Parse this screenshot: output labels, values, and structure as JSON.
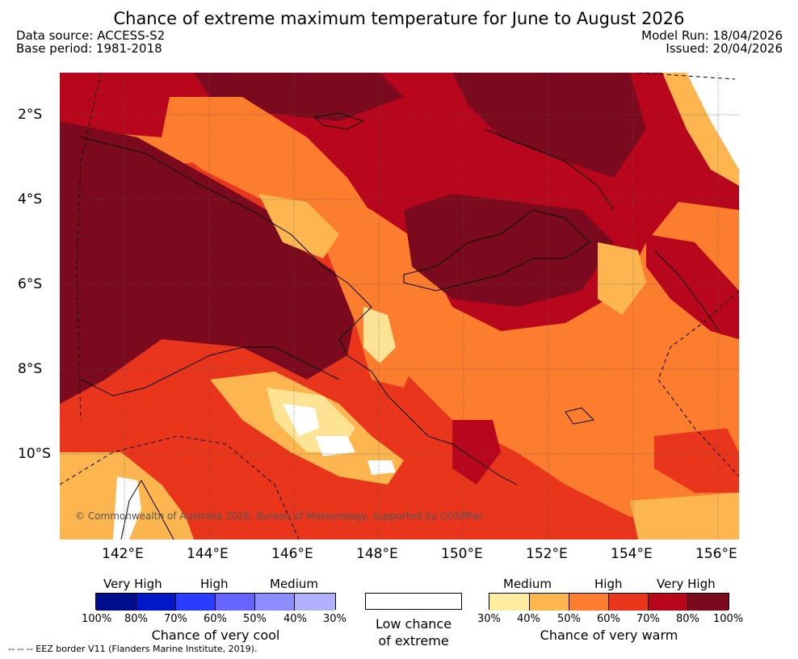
{
  "title": "Chance of extreme maximum temperature for June to August 2026",
  "meta": {
    "data_source": "Data source: ACCESS-S2",
    "base_period": "Base period: 1981-2018",
    "model_run": "Model Run: 18/04/2026",
    "issued": "Issued: 20/04/2026"
  },
  "map": {
    "lat_labels": [
      "2°S",
      "4°S",
      "6°S",
      "8°S",
      "10°S"
    ],
    "lon_labels": [
      "142°E",
      "144°E",
      "146°E",
      "148°E",
      "150°E",
      "152°E",
      "154°E",
      "156°E"
    ],
    "copyright": "© Commonwealth of Australia 2026, Bureau of Meteorology, supported by COSPPac",
    "colors": {
      "very_high_warm": "#7b0a1f",
      "high_warm_80": "#b8061c",
      "high_warm_70": "#e8351c",
      "medium_warm_60": "#fd7d2e",
      "medium_warm_50": "#fdb253",
      "low_warm_40": "#fee394",
      "no_chance": "#ffffff"
    }
  },
  "legend": {
    "cool": {
      "headers": [
        "Very High",
        "High",
        "Medium"
      ],
      "ticks": [
        "100%",
        "80%",
        "70%",
        "60%",
        "50%",
        "40%",
        "30%"
      ],
      "caption": "Chance of very cool",
      "colors": [
        "#000d8c",
        "#0218c8",
        "#2b3bff",
        "#6664ff",
        "#8d8cff",
        "#b0b0ff"
      ]
    },
    "low": {
      "caption_line1": "Low chance",
      "caption_line2": "of extreme"
    },
    "warm": {
      "headers": [
        "Medium",
        "High",
        "Very High"
      ],
      "ticks": [
        "30%",
        "40%",
        "50%",
        "60%",
        "70%",
        "80%",
        "100%"
      ],
      "caption": "Chance of very warm",
      "colors": [
        "#feed9e",
        "#fdb64f",
        "#fd7d2e",
        "#e8351c",
        "#b8061c",
        "#7b0a1f"
      ]
    }
  },
  "eez_note": "-- -- -- EEZ border V11 (Flanders Marine Institute, 2019)."
}
